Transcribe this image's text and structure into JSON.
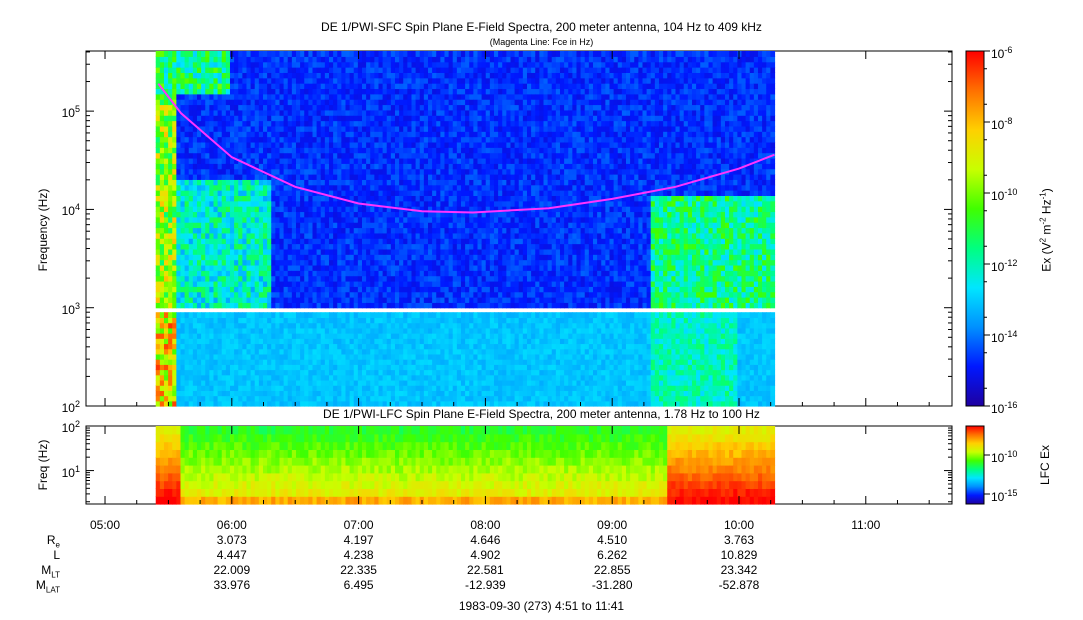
{
  "page": {
    "title_sfc": "DE 1/PWI-SFC  Spin Plane E-Field Spectra, 200 meter antenna, 104 Hz to 409 kHz",
    "subtitle_sfc": "(Magenta Line: Fce in Hz)",
    "title_lfc": "DE 1/PWI-LFC  Spin Plane E-Field Spectra, 200 meter antenna, 1.78 Hz to 100 Hz",
    "date_range": "1983-09-30 (273) 4:51 to 11:41"
  },
  "colors": {
    "magenta_line": "#ff33ff",
    "colorbar_stops": [
      "#1e00a0",
      "#0018ff",
      "#0090ff",
      "#00e6ff",
      "#00ff80",
      "#40ff00",
      "#c8ff00",
      "#ffd000",
      "#ff7000",
      "#ff0000"
    ]
  },
  "chart_data": [
    {
      "type": "heatmap",
      "title": "DE 1/PWI-SFC  Spin Plane E-Field Spectra, 200 meter antenna, 104 Hz to 409 kHz",
      "subtitle": "(Magenta Line: Fce in Hz)",
      "ylabel": "Frequency (Hz)",
      "yscale": "log",
      "ylim": [
        100,
        409000
      ],
      "y_ticks": [
        "10^2",
        "10^3",
        "10^4",
        "10^5"
      ],
      "data_time_range_hours": [
        5.4,
        10.28
      ],
      "gap_band_hz": [
        900,
        1000
      ],
      "fce_line": {
        "name": "Fce",
        "t_hours": [
          5.42,
          5.6,
          6.0,
          6.5,
          7.0,
          7.5,
          7.9,
          8.5,
          9.0,
          9.5,
          10.0,
          10.28
        ],
        "hz": [
          190000,
          95000,
          34000,
          17000,
          11500,
          9600,
          9300,
          10300,
          12800,
          17000,
          26000,
          36000
        ]
      },
      "colorbar": {
        "label": "Ex (V^2 m^-2 Hz^-1)",
        "scale": "log",
        "range": [
          1e-16,
          1e-06
        ],
        "tick_labels": [
          "10^-6",
          "10^-8",
          "10^-10",
          "10^-12",
          "10^-14",
          "10^-16"
        ]
      }
    },
    {
      "type": "heatmap",
      "title": "DE 1/PWI-LFC  Spin Plane E-Field Spectra, 200 meter antenna, 1.78 Hz to 100 Hz",
      "ylabel": "Freq (Hz)",
      "yscale": "log",
      "ylim": [
        1.78,
        100
      ],
      "y_ticks": [
        "10^1",
        "10^2"
      ],
      "data_time_range_hours": [
        5.4,
        10.28
      ],
      "colorbar": {
        "label": "LFC Ex",
        "scale": "log",
        "tick_labels": [
          "10^-10",
          "10^-15"
        ]
      }
    }
  ],
  "time_axis": {
    "range_hours": [
      4.85,
      11.68
    ],
    "ticks": [
      "05:00",
      "06:00",
      "07:00",
      "08:00",
      "09:00",
      "10:00",
      "11:00"
    ]
  },
  "ephemeris": {
    "rows": [
      {
        "label_main": "R",
        "label_sub": "e",
        "values": [
          "3.073",
          "4.197",
          "4.646",
          "4.510",
          "3.763"
        ]
      },
      {
        "label_main": "L",
        "label_sub": "",
        "values": [
          "4.447",
          "4.238",
          "4.902",
          "6.262",
          "10.829"
        ]
      },
      {
        "label_main": "M",
        "label_sub": "LT",
        "values": [
          "22.009",
          "22.335",
          "22.581",
          "22.855",
          "23.342"
        ]
      },
      {
        "label_main": "M",
        "label_sub": "LAT",
        "values": [
          "33.976",
          "6.495",
          "-12.939",
          "-31.280",
          "-52.878"
        ]
      }
    ]
  }
}
